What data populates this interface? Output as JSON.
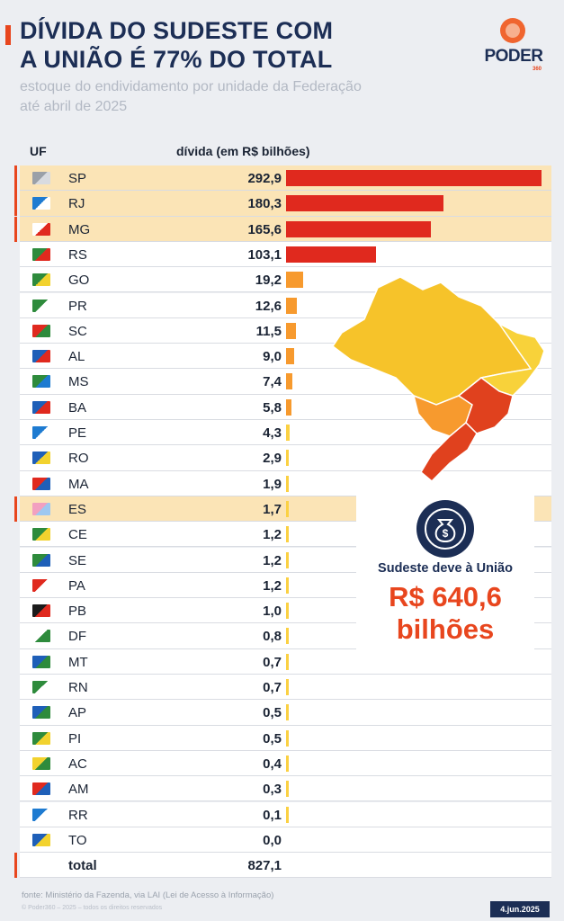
{
  "header": {
    "title_line1": "DÍVIDA DO SUDESTE COM",
    "title_line2": "A UNIÃO É 77% DO TOTAL",
    "subtitle_line1": "estoque do endividamento por unidade da Federação",
    "subtitle_line2": "até abril de 2025",
    "logo_text": "PODER",
    "logo_year": "360"
  },
  "colors": {
    "accent": "#e8461e",
    "navy": "#1c2e55",
    "highlight_row": "#fbe4b6",
    "bar_top": "#e0291e",
    "bar_mid": "#f79a2e",
    "bar_low": "#fbd143"
  },
  "table": {
    "header_uf": "UF",
    "header_value": "dívida (em R$ bilhões)",
    "total_label": "total",
    "total_value": "827,1"
  },
  "chart_data": {
    "type": "bar",
    "orientation": "horizontal",
    "title": "DÍVIDA DO SUDESTE COM A UNIÃO É 77% DO TOTAL",
    "subtitle": "estoque do endividamento por unidade da Federação até abril de 2025",
    "xlabel": "dívida (em R$ bilhões)",
    "ylabel": "UF",
    "xlim": [
      0,
      292.9
    ],
    "grid": false,
    "categories": [
      "SP",
      "RJ",
      "MG",
      "RS",
      "GO",
      "PR",
      "SC",
      "AL",
      "MS",
      "BA",
      "PE",
      "RO",
      "MA",
      "ES",
      "CE",
      "SE",
      "PA",
      "PB",
      "DF",
      "MT",
      "RN",
      "AP",
      "PI",
      "AC",
      "AM",
      "RR",
      "TO"
    ],
    "values": [
      292.9,
      180.3,
      165.6,
      103.1,
      19.2,
      12.6,
      11.5,
      9.0,
      7.4,
      5.8,
      4.3,
      2.9,
      1.9,
      1.7,
      1.2,
      1.2,
      1.2,
      1.0,
      0.8,
      0.7,
      0.7,
      0.5,
      0.5,
      0.4,
      0.3,
      0.1,
      0.0
    ],
    "value_labels": [
      "292,9",
      "180,3",
      "165,6",
      "103,1",
      "19,2",
      "12,6",
      "11,5",
      "9,0",
      "7,4",
      "5,8",
      "4,3",
      "2,9",
      "1,9",
      "1,7",
      "1,2",
      "1,2",
      "1,2",
      "1,0",
      "0,8",
      "0,7",
      "0,7",
      "0,5",
      "0,5",
      "0,4",
      "0,3",
      "0,1",
      "0,0"
    ],
    "highlighted": [
      "SP",
      "RJ",
      "MG",
      "ES"
    ]
  },
  "callout": {
    "text": "Sudeste deve à União",
    "amount_line1": "R$ 640,6",
    "amount_line2": "bilhões",
    "icon": "money-bag-icon"
  },
  "flags": {
    "SP": [
      "#9aa0a8",
      "#d8dbe0"
    ],
    "RJ": [
      "#1e7bd1",
      "#ffffff"
    ],
    "MG": [
      "#ffffff",
      "#e0291e"
    ],
    "RS": [
      "#2e8b3c",
      "#e0291e"
    ],
    "GO": [
      "#2e8b3c",
      "#f2d22e"
    ],
    "PR": [
      "#2e8b3c",
      "#ffffff"
    ],
    "SC": [
      "#e0291e",
      "#2e8b3c"
    ],
    "AL": [
      "#1e5fb8",
      "#e0291e"
    ],
    "MS": [
      "#2e8b3c",
      "#1e7bd1"
    ],
    "BA": [
      "#1e5fb8",
      "#e0291e"
    ],
    "PE": [
      "#1e7bd1",
      "#ffffff"
    ],
    "RO": [
      "#1e5fb8",
      "#f2d22e"
    ],
    "MA": [
      "#e0291e",
      "#1e5fb8"
    ],
    "ES": [
      "#f2a0c0",
      "#9ec8f0"
    ],
    "CE": [
      "#2e8b3c",
      "#f2d22e"
    ],
    "SE": [
      "#2e8b3c",
      "#1e5fb8"
    ],
    "PA": [
      "#e0291e",
      "#ffffff"
    ],
    "PB": [
      "#1b1b1b",
      "#e0291e"
    ],
    "DF": [
      "#ffffff",
      "#2e8b3c"
    ],
    "MT": [
      "#1e5fb8",
      "#2e8b3c"
    ],
    "RN": [
      "#2e8b3c",
      "#ffffff"
    ],
    "AP": [
      "#1e5fb8",
      "#2e8b3c"
    ],
    "PI": [
      "#2e8b3c",
      "#f2d22e"
    ],
    "AC": [
      "#f2d22e",
      "#2e8b3c"
    ],
    "AM": [
      "#e0291e",
      "#1e5fb8"
    ],
    "RR": [
      "#1e7bd1",
      "#ffffff"
    ],
    "TO": [
      "#1e5fb8",
      "#f2d22e"
    ]
  },
  "footer": {
    "source": "fonte: Ministério da Fazenda, via LAI (Lei de Acesso à Informação)",
    "copyright": "© Poder360 – 2025 – todos os direitos reservados",
    "date": "4.jun.2025"
  }
}
